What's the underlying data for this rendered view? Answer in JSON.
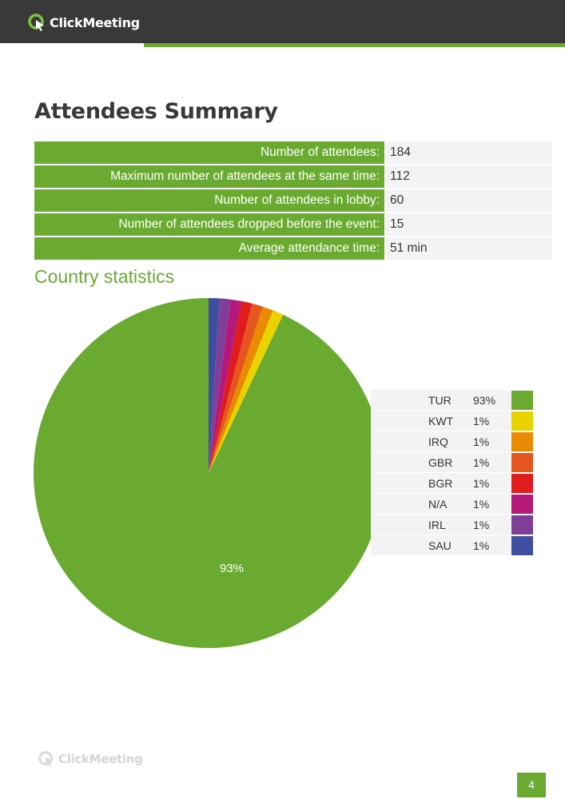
{
  "header": {
    "brand": "ClickMeeting"
  },
  "page_title": "Attendees Summary",
  "summary": [
    {
      "label": "Number of attendees:",
      "value": "184"
    },
    {
      "label": "Maximum number of attendees at the same time:",
      "value": "112"
    },
    {
      "label": "Number of attendees in lobby:",
      "value": "60"
    },
    {
      "label": "Number of attendees dropped before the event:",
      "value": "15"
    },
    {
      "label": "Average attendance time:",
      "value": "51 min"
    }
  ],
  "section_title": "Country statistics",
  "chart_data": {
    "type": "pie",
    "title": "",
    "start": "top (12 o'clock), counter-clockwise",
    "categories": [
      "TUR",
      "KWT",
      "IRQ",
      "GBR",
      "BGR",
      "N/A",
      "IRL",
      "SAU"
    ],
    "values": [
      93,
      1,
      1,
      1,
      1,
      1,
      1,
      1
    ],
    "colors": [
      "#6aaa31",
      "#e8d200",
      "#e98a00",
      "#e4561d",
      "#e01c1c",
      "#b5177a",
      "#7f3e98",
      "#3f4ea1"
    ],
    "slice_label": "93%",
    "legend_placement": "right"
  },
  "legend": [
    {
      "code": "TUR",
      "pct": "93%",
      "color": "#6aaa31"
    },
    {
      "code": "KWT",
      "pct": "1%",
      "color": "#e8d200"
    },
    {
      "code": "IRQ",
      "pct": "1%",
      "color": "#e98a00"
    },
    {
      "code": "GBR",
      "pct": "1%",
      "color": "#e4561d"
    },
    {
      "code": "BGR",
      "pct": "1%",
      "color": "#e01c1c"
    },
    {
      "code": "N/A",
      "pct": "1%",
      "color": "#b5177a"
    },
    {
      "code": "IRL",
      "pct": "1%",
      "color": "#7f3e98"
    },
    {
      "code": "SAU",
      "pct": "1%",
      "color": "#3f4ea1"
    }
  ],
  "footer": {
    "brand": "ClickMeeting",
    "page_number": "4"
  }
}
